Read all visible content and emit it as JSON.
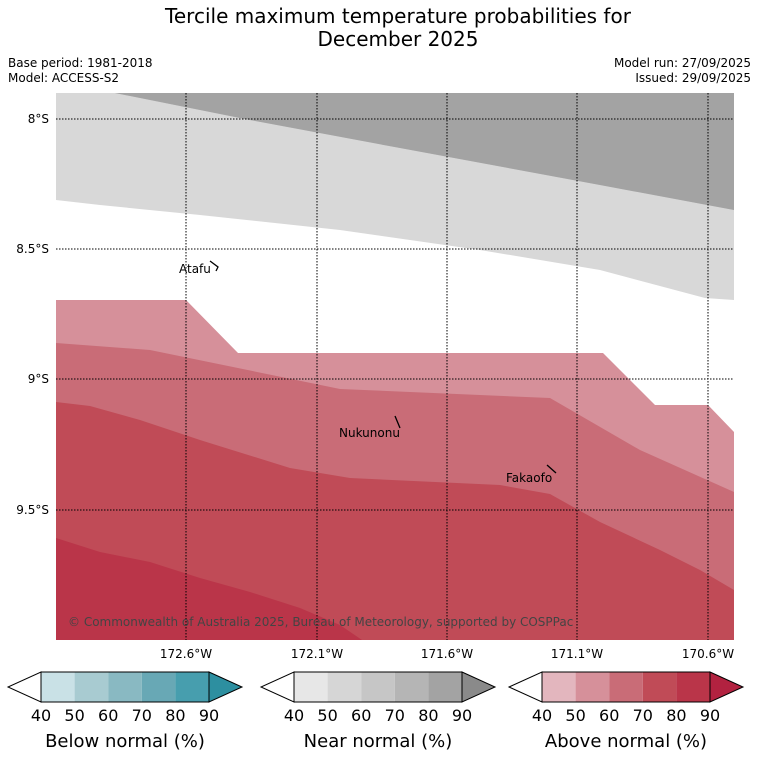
{
  "header": {
    "title_line1": "Tercile maximum temperature probabilities for",
    "title_line2": "December 2025",
    "base_period": "Base period: 1981-2018",
    "model": "Model: ACCESS-S2",
    "model_run": "Model run: 27/09/2025",
    "issued": "Issued: 29/09/2025"
  },
  "map": {
    "lat_ticks": [
      "8°S",
      "8.5°S",
      "9°S",
      "9.5°S"
    ],
    "lon_ticks": [
      "172.6°W",
      "172.1°W",
      "171.6°W",
      "171.1°W",
      "170.6°W"
    ],
    "places": [
      "Atafu",
      "Nukunonu",
      "Fakaofo"
    ],
    "copyright": "© Commonwealth of Australia 2025, Bureau of Meteorology, supported by COSPPac",
    "near_colors": [
      "#a3a3a3",
      "#c6c6c6",
      "#d8d8d8"
    ],
    "above_colors": [
      "#d6909a",
      "#c96c77",
      "#c04b57",
      "#ba3549"
    ]
  },
  "colorbars": [
    {
      "label": "Below normal (%)",
      "ticks": [
        "40",
        "50",
        "60",
        "70",
        "80",
        "90"
      ],
      "colors": [
        "#ffffff",
        "#c9e1e6",
        "#a8cbd1",
        "#89b9c2",
        "#68a8b5",
        "#479eae",
        "#2d8fa0"
      ]
    },
    {
      "label": "Near normal (%)",
      "ticks": [
        "40",
        "50",
        "60",
        "70",
        "80",
        "90"
      ],
      "colors": [
        "#ffffff",
        "#e7e7e7",
        "#d6d6d6",
        "#c6c6c6",
        "#b5b5b5",
        "#a3a3a3",
        "#8a8a8a"
      ]
    },
    {
      "label": "Above normal (%)",
      "ticks": [
        "40",
        "50",
        "60",
        "70",
        "80",
        "90"
      ],
      "colors": [
        "#ffffff",
        "#e3b6be",
        "#d6909a",
        "#c96c77",
        "#c04b57",
        "#ba3549",
        "#b22240"
      ]
    }
  ]
}
